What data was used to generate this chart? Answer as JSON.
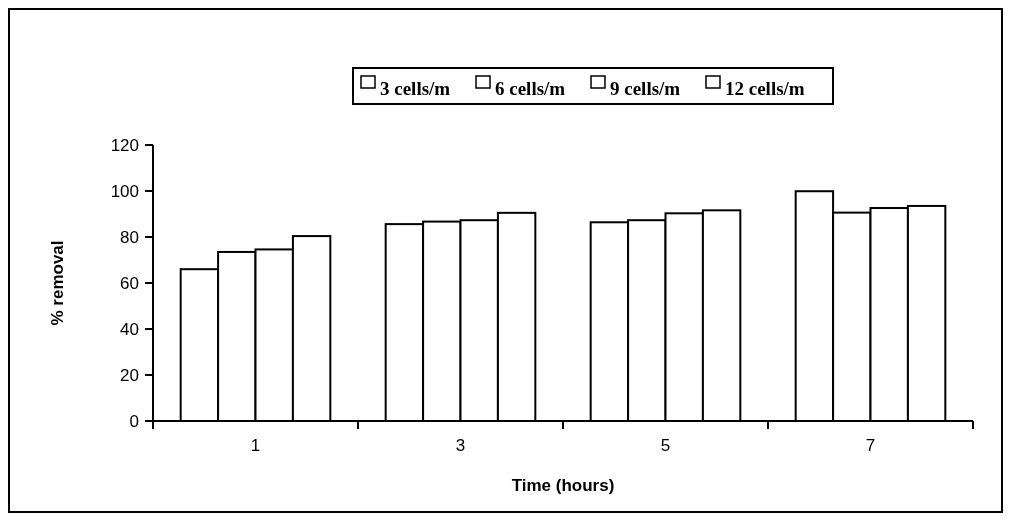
{
  "chart_data": {
    "type": "bar",
    "xlabel": "Time (hours)",
    "ylabel": "% removal",
    "categories": [
      "1",
      "3",
      "5",
      "7"
    ],
    "series": [
      {
        "name": "3 cells/m",
        "color": "#ffffff",
        "values": [
          66,
          85.6,
          86.4,
          99.9
        ]
      },
      {
        "name": "6 cells/m",
        "color": "#ffffff",
        "values": [
          73.5,
          86.7,
          87.3,
          90.6
        ]
      },
      {
        "name": "9 cells/m",
        "color": "#ffffff",
        "values": [
          74.6,
          87.3,
          90.3,
          92.6
        ]
      },
      {
        "name": "12 cells/m",
        "color": "#ffffff",
        "values": [
          80.4,
          90.5,
          91.6,
          93.5
        ]
      }
    ],
    "ylim": [
      0,
      120
    ],
    "yticks": [
      0,
      20,
      40,
      60,
      80,
      100,
      120
    ],
    "grid": false,
    "legend": "top"
  }
}
